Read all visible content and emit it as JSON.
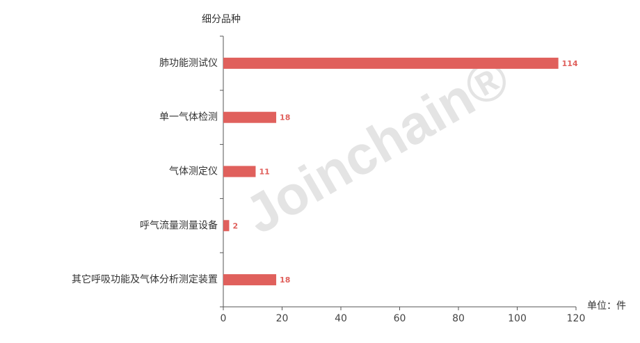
{
  "chart_data": {
    "type": "bar",
    "orientation": "horizontal",
    "y_label": "细分品种",
    "x_label": "单位：件",
    "watermark": "Joinchain®",
    "categories": [
      "肺功能测试仪",
      "单一气体检测",
      "气体测定仪",
      "呼气流量测量设备",
      "其它呼吸功能及气体分析测定装置"
    ],
    "values": [
      114,
      18,
      11,
      2,
      18
    ],
    "color": "#e0605c",
    "xlim": [
      0,
      120
    ],
    "xticks": [
      0,
      20,
      40,
      60,
      80,
      100,
      120
    ],
    "grid": false
  }
}
